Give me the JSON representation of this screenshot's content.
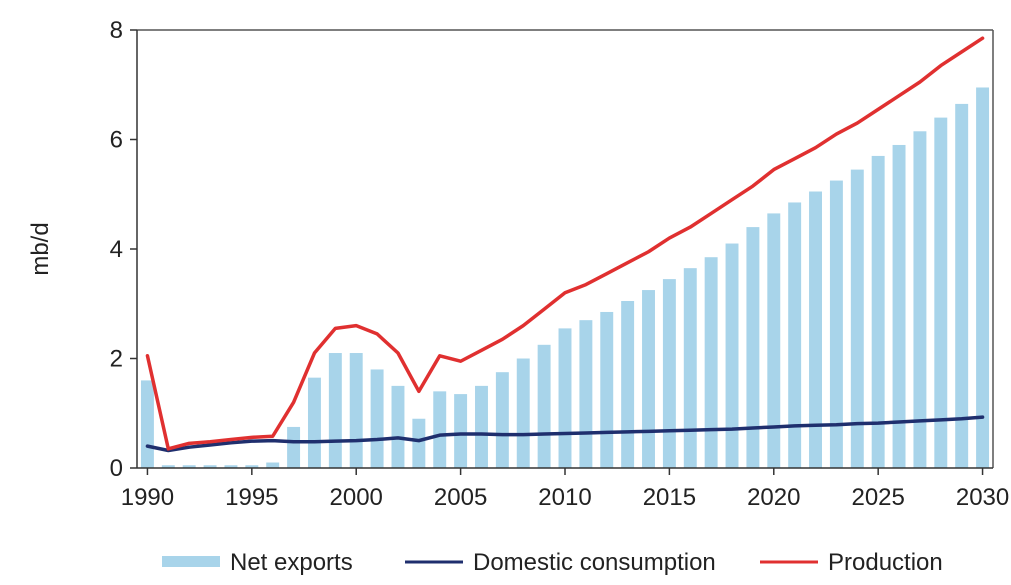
{
  "chart_data": {
    "type": "bar",
    "title": "",
    "xlabel": "",
    "ylabel": "mb/d",
    "ylim": [
      0,
      8
    ],
    "xlim": [
      1990,
      2030
    ],
    "yticks": [
      0,
      2,
      4,
      6,
      8
    ],
    "xticks": [
      1990,
      1995,
      2000,
      2005,
      2010,
      2015,
      2020,
      2025,
      2030
    ],
    "grid": false,
    "legend_position": "bottom",
    "x": [
      1990,
      1991,
      1992,
      1993,
      1994,
      1995,
      1996,
      1997,
      1998,
      1999,
      2000,
      2001,
      2002,
      2003,
      2004,
      2005,
      2006,
      2007,
      2008,
      2009,
      2010,
      2011,
      2012,
      2013,
      2014,
      2015,
      2016,
      2017,
      2018,
      2019,
      2020,
      2021,
      2022,
      2023,
      2024,
      2025,
      2026,
      2027,
      2028,
      2029,
      2030
    ],
    "series": [
      {
        "name": "Net exports",
        "kind": "bar",
        "color": "#a8d4ea",
        "values": [
          1.6,
          0.05,
          0.05,
          0.05,
          0.05,
          0.05,
          0.1,
          0.75,
          1.65,
          2.1,
          2.1,
          1.8,
          1.5,
          0.9,
          1.4,
          1.35,
          1.5,
          1.75,
          2.0,
          2.25,
          2.55,
          2.7,
          2.85,
          3.05,
          3.25,
          3.45,
          3.65,
          3.85,
          4.1,
          4.4,
          4.65,
          4.85,
          5.05,
          5.25,
          5.45,
          5.7,
          5.9,
          6.15,
          6.4,
          6.65,
          6.95
        ]
      },
      {
        "name": "Domestic consumption",
        "kind": "line",
        "color": "#1f2f6e",
        "values": [
          0.4,
          0.32,
          0.38,
          0.42,
          0.46,
          0.49,
          0.5,
          0.48,
          0.48,
          0.49,
          0.5,
          0.52,
          0.55,
          0.5,
          0.6,
          0.62,
          0.62,
          0.61,
          0.61,
          0.62,
          0.63,
          0.64,
          0.65,
          0.66,
          0.67,
          0.68,
          0.69,
          0.7,
          0.71,
          0.73,
          0.75,
          0.77,
          0.78,
          0.79,
          0.81,
          0.82,
          0.84,
          0.86,
          0.88,
          0.9,
          0.93
        ]
      },
      {
        "name": "Production",
        "kind": "line",
        "color": "#e03030",
        "values": [
          2.05,
          0.35,
          0.45,
          0.48,
          0.52,
          0.56,
          0.58,
          1.2,
          2.1,
          2.55,
          2.6,
          2.45,
          2.1,
          1.4,
          2.05,
          1.95,
          2.15,
          2.35,
          2.6,
          2.9,
          3.2,
          3.35,
          3.55,
          3.75,
          3.95,
          4.2,
          4.4,
          4.65,
          4.9,
          5.15,
          5.45,
          5.65,
          5.85,
          6.1,
          6.3,
          6.55,
          6.8,
          7.05,
          7.35,
          7.6,
          7.85
        ]
      }
    ]
  }
}
